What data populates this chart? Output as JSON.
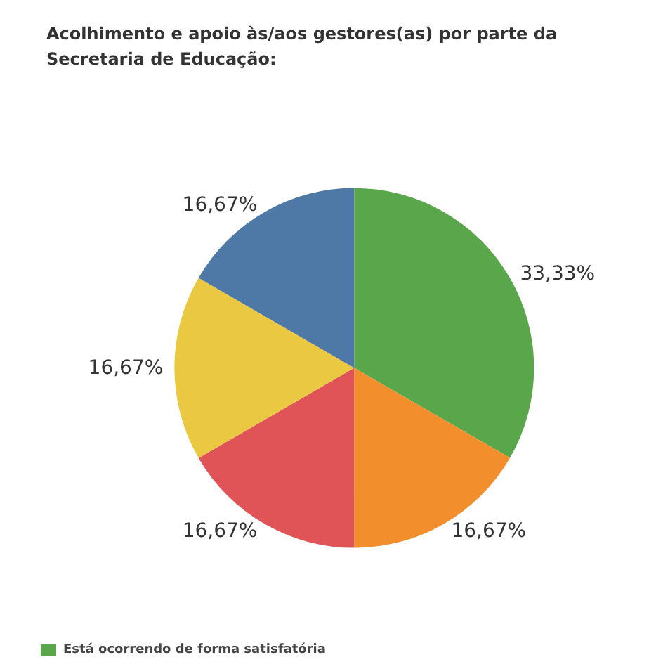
{
  "chart_data": {
    "type": "pie",
    "title": "Acolhimento e apoio às/aos gestores(as) por parte da\nSecretaria de Educação:",
    "categories": [
      "Está ocorrendo de forma satisfatória",
      null,
      null,
      null,
      null
    ],
    "values": [
      33.33,
      16.67,
      16.67,
      16.67,
      16.67
    ],
    "value_labels": [
      "33,33%",
      "16,67%",
      "16,67%",
      "16,67%",
      "16,67%"
    ],
    "colors": [
      "#5aa64b",
      "#f28f2c",
      "#e05457",
      "#ebc842",
      "#4e79a7"
    ],
    "legend": "bottom left"
  }
}
